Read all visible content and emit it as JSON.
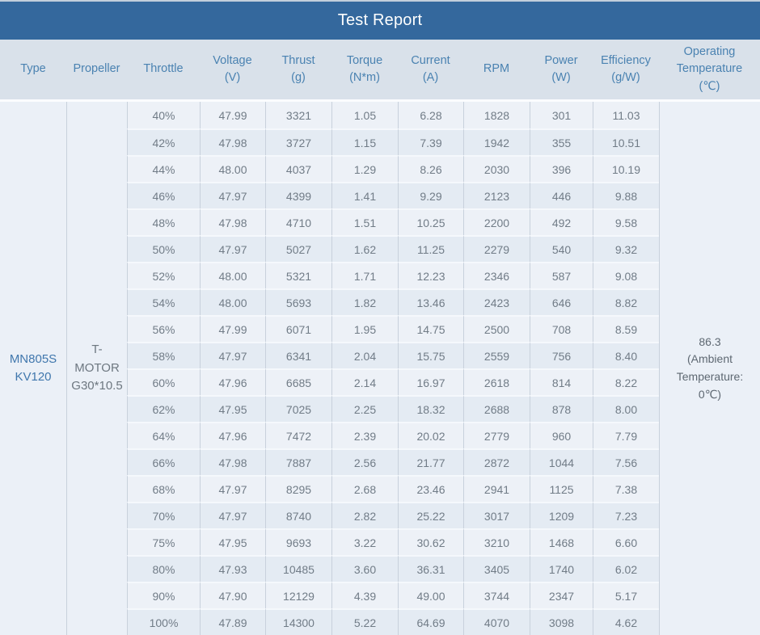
{
  "title": "Test Report",
  "columns": [
    {
      "label": "Type",
      "unit": ""
    },
    {
      "label": "Propeller",
      "unit": ""
    },
    {
      "label": "Throttle",
      "unit": ""
    },
    {
      "label": "Voltage",
      "unit": "(V)"
    },
    {
      "label": "Thrust",
      "unit": "(g)"
    },
    {
      "label": "Torque",
      "unit": "(N*m)"
    },
    {
      "label": "Current",
      "unit": "(A)"
    },
    {
      "label": "RPM",
      "unit": ""
    },
    {
      "label": "Power",
      "unit": "(W)"
    },
    {
      "label": "Efficiency",
      "unit": "(g/W)"
    },
    {
      "label": "Operating Temperature",
      "unit": "(℃)"
    }
  ],
  "type": {
    "value": "MN805S KV120",
    "lines": [
      "MN805S",
      "KV120"
    ]
  },
  "propeller": {
    "value": "T-MOTOR G30*10.5",
    "lines": [
      "T-",
      "MOTOR",
      "G30*10.5"
    ]
  },
  "operating_temperature": {
    "value": "86.3 (Ambient Temperature: 0℃)",
    "lines": [
      "86.3",
      "(Ambient",
      "Temperature:",
      "0℃)"
    ]
  },
  "row_fields": [
    "throttle",
    "voltage",
    "thrust",
    "torque",
    "current",
    "rpm",
    "power",
    "efficiency"
  ],
  "rows": [
    {
      "throttle": "40%",
      "voltage": "47.99",
      "thrust": "3321",
      "torque": "1.05",
      "current": "6.28",
      "rpm": "1828",
      "power": "301",
      "efficiency": "11.03"
    },
    {
      "throttle": "42%",
      "voltage": "47.98",
      "thrust": "3727",
      "torque": "1.15",
      "current": "7.39",
      "rpm": "1942",
      "power": "355",
      "efficiency": "10.51"
    },
    {
      "throttle": "44%",
      "voltage": "48.00",
      "thrust": "4037",
      "torque": "1.29",
      "current": "8.26",
      "rpm": "2030",
      "power": "396",
      "efficiency": "10.19"
    },
    {
      "throttle": "46%",
      "voltage": "47.97",
      "thrust": "4399",
      "torque": "1.41",
      "current": "9.29",
      "rpm": "2123",
      "power": "446",
      "efficiency": "9.88"
    },
    {
      "throttle": "48%",
      "voltage": "47.98",
      "thrust": "4710",
      "torque": "1.51",
      "current": "10.25",
      "rpm": "2200",
      "power": "492",
      "efficiency": "9.58"
    },
    {
      "throttle": "50%",
      "voltage": "47.97",
      "thrust": "5027",
      "torque": "1.62",
      "current": "11.25",
      "rpm": "2279",
      "power": "540",
      "efficiency": "9.32"
    },
    {
      "throttle": "52%",
      "voltage": "48.00",
      "thrust": "5321",
      "torque": "1.71",
      "current": "12.23",
      "rpm": "2346",
      "power": "587",
      "efficiency": "9.08"
    },
    {
      "throttle": "54%",
      "voltage": "48.00",
      "thrust": "5693",
      "torque": "1.82",
      "current": "13.46",
      "rpm": "2423",
      "power": "646",
      "efficiency": "8.82"
    },
    {
      "throttle": "56%",
      "voltage": "47.99",
      "thrust": "6071",
      "torque": "1.95",
      "current": "14.75",
      "rpm": "2500",
      "power": "708",
      "efficiency": "8.59"
    },
    {
      "throttle": "58%",
      "voltage": "47.97",
      "thrust": "6341",
      "torque": "2.04",
      "current": "15.75",
      "rpm": "2559",
      "power": "756",
      "efficiency": "8.40"
    },
    {
      "throttle": "60%",
      "voltage": "47.96",
      "thrust": "6685",
      "torque": "2.14",
      "current": "16.97",
      "rpm": "2618",
      "power": "814",
      "efficiency": "8.22"
    },
    {
      "throttle": "62%",
      "voltage": "47.95",
      "thrust": "7025",
      "torque": "2.25",
      "current": "18.32",
      "rpm": "2688",
      "power": "878",
      "efficiency": "8.00"
    },
    {
      "throttle": "64%",
      "voltage": "47.96",
      "thrust": "7472",
      "torque": "2.39",
      "current": "20.02",
      "rpm": "2779",
      "power": "960",
      "efficiency": "7.79"
    },
    {
      "throttle": "66%",
      "voltage": "47.98",
      "thrust": "7887",
      "torque": "2.56",
      "current": "21.77",
      "rpm": "2872",
      "power": "1044",
      "efficiency": "7.56"
    },
    {
      "throttle": "68%",
      "voltage": "47.97",
      "thrust": "8295",
      "torque": "2.68",
      "current": "23.46",
      "rpm": "2941",
      "power": "1125",
      "efficiency": "7.38"
    },
    {
      "throttle": "70%",
      "voltage": "47.97",
      "thrust": "8740",
      "torque": "2.82",
      "current": "25.22",
      "rpm": "3017",
      "power": "1209",
      "efficiency": "7.23"
    },
    {
      "throttle": "75%",
      "voltage": "47.95",
      "thrust": "9693",
      "torque": "3.22",
      "current": "30.62",
      "rpm": "3210",
      "power": "1468",
      "efficiency": "6.60"
    },
    {
      "throttle": "80%",
      "voltage": "47.93",
      "thrust": "10485",
      "torque": "3.60",
      "current": "36.31",
      "rpm": "3405",
      "power": "1740",
      "efficiency": "6.02"
    },
    {
      "throttle": "90%",
      "voltage": "47.90",
      "thrust": "12129",
      "torque": "4.39",
      "current": "49.00",
      "rpm": "3744",
      "power": "2347",
      "efficiency": "5.17"
    },
    {
      "throttle": "100%",
      "voltage": "47.89",
      "thrust": "14300",
      "torque": "5.22",
      "current": "64.69",
      "rpm": "4070",
      "power": "3098",
      "efficiency": "4.62"
    }
  ],
  "colors": {
    "title_bar_bg": "#34689d",
    "title_text": "#fdfefe",
    "header_bg": "#d9e1ea",
    "header_text": "#4a82b1",
    "row_light_bg": "#edf1f7",
    "row_dark_bg": "#e4ebf3",
    "merged_cell_bg": "#ebf0f7",
    "grid_border": "#c8d1dc",
    "data_text": "#717c87",
    "type_text": "#4077ad"
  }
}
